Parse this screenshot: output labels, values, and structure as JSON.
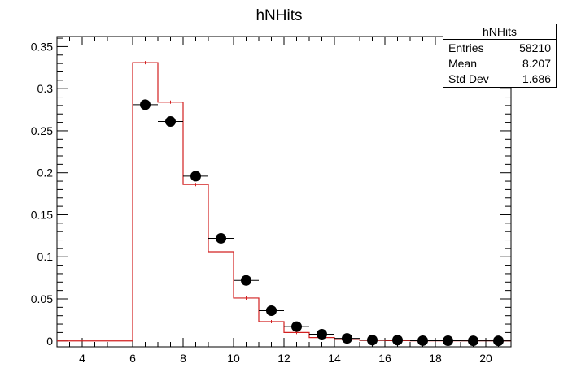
{
  "chart_data": {
    "type": "histogram",
    "title": "hNHits",
    "xlabel": "",
    "ylabel": "",
    "xlim": [
      3,
      21
    ],
    "ylim": [
      -0.007,
      0.362
    ],
    "x_ticks": [
      "4",
      "6",
      "8",
      "10",
      "12",
      "14",
      "16",
      "18",
      "20"
    ],
    "y_ticks": [
      "0",
      "0.05",
      "0.1",
      "0.15",
      "0.2",
      "0.25",
      "0.3",
      "0.35"
    ],
    "bin_edges": [
      3,
      4,
      5,
      6,
      7,
      8,
      9,
      10,
      11,
      12,
      13,
      14,
      15,
      16,
      17,
      18,
      19,
      20,
      21
    ],
    "series": [
      {
        "style": "step",
        "color": "#d22020",
        "values": [
          0,
          0,
          0,
          0.331,
          0.284,
          0.186,
          0.106,
          0.051,
          0.023,
          0.01,
          0.004,
          0.0015,
          0.0006,
          0.0003,
          0.0001,
          0.0001,
          0.0001,
          0.0001
        ]
      },
      {
        "style": "markers",
        "color": "#000000",
        "x": [
          6.5,
          7.5,
          8.5,
          9.5,
          10.5,
          11.5,
          12.5,
          13.5,
          14.5,
          15.5,
          16.5,
          17.5,
          18.5,
          19.5,
          20.5
        ],
        "values": [
          0.281,
          0.261,
          0.196,
          0.122,
          0.072,
          0.036,
          0.017,
          0.008,
          0.003,
          0.001,
          0.001,
          0.0003,
          0.0002,
          0.0001,
          0.0001
        ]
      }
    ],
    "stats_box": {
      "title": "hNHits",
      "rows": [
        {
          "label": "Entries",
          "value": "58210"
        },
        {
          "label": "Mean",
          "value": "8.207"
        },
        {
          "label": "Std Dev",
          "value": "1.686"
        }
      ]
    }
  }
}
